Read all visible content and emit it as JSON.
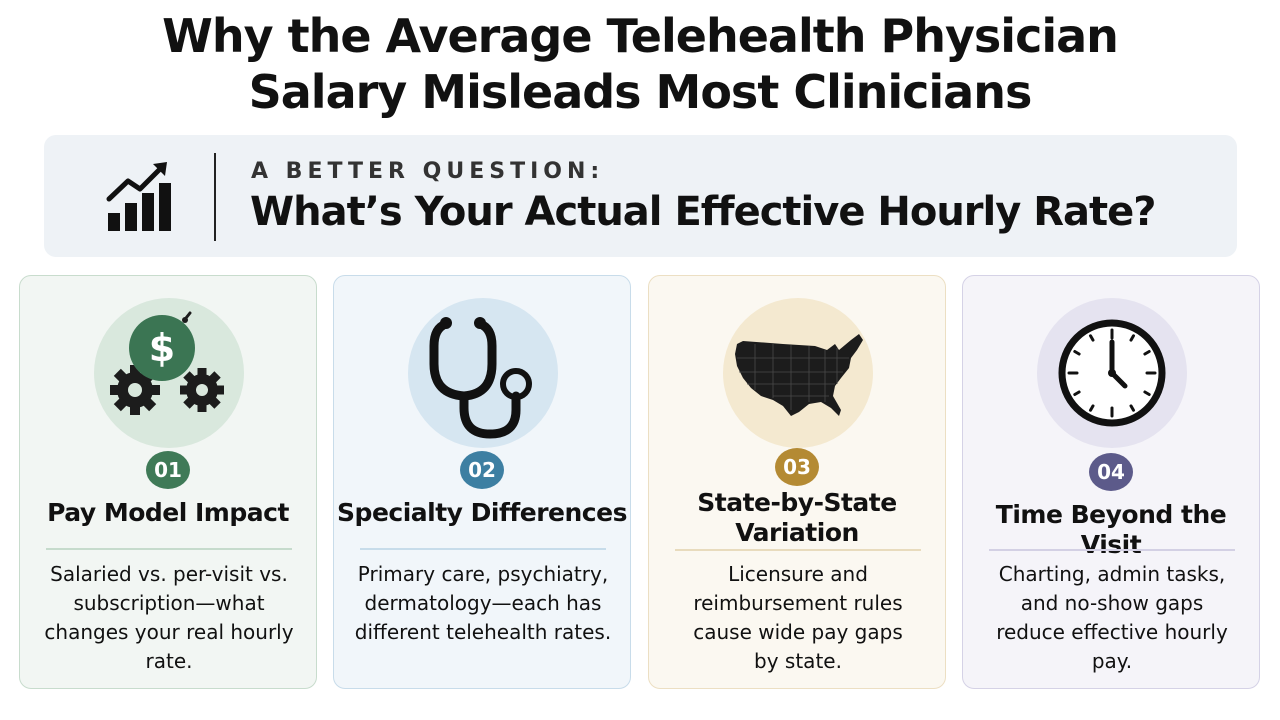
{
  "title": {
    "line1": "Why the Average Telehealth Physician",
    "line2": "Salary Misleads Most Clinicians"
  },
  "banner": {
    "icon": "bar-chart-trend-up-icon",
    "eyebrow": "A BETTER QUESTION:",
    "question": "What’s Your Actual Effective Hourly Rate?"
  },
  "cards": [
    {
      "number": "01",
      "icon": "dollar-gears-icon",
      "title": "Pay Model Impact",
      "description": "Salaried vs. per-visit vs. subscription—what changes your real hourly rate.",
      "accent": "#3f7a57"
    },
    {
      "number": "02",
      "icon": "stethoscope-icon",
      "title": "Specialty Differences",
      "description": "Primary care, psychiatry, dermatology—each has different telehealth rates.",
      "accent": "#3d7fa2"
    },
    {
      "number": "03",
      "icon": "us-map-icon",
      "title": "State-by-State Variation",
      "description": "Licensure and reimbursement rules cause wide pay gaps by state.",
      "accent": "#b48a33"
    },
    {
      "number": "04",
      "icon": "clock-icon",
      "title": "Time Beyond the Visit",
      "description": "Charting, admin tasks, and no-show gaps reduce effective hourly pay.",
      "accent": "#5c5a8a"
    }
  ]
}
